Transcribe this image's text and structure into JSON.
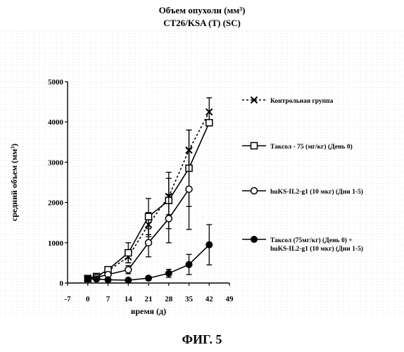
{
  "header": {
    "title_line1": "Объем опухоли (мм³)",
    "title_line2": "CT26/KSA (T) (SC)"
  },
  "figure_label": "ФИГ. 5",
  "chart_data": {
    "type": "line",
    "title": "Объем опухоли (мм³)",
    "subtitle": "CT26/KSA (T) (SC)",
    "xlabel": "время (д)",
    "ylabel": "средний объем (мм³)",
    "xlim": [
      -7,
      49
    ],
    "ylim": [
      0,
      5000
    ],
    "xticks": [
      -7,
      0,
      7,
      14,
      21,
      28,
      35,
      42,
      49
    ],
    "yticks": [
      0,
      1000,
      2000,
      3000,
      4000,
      5000
    ],
    "grid": true,
    "legend_position": "right",
    "series": [
      {
        "name": "Контрольная группа",
        "marker": "x",
        "line": "dotted",
        "x": [
          0,
          3,
          7,
          14,
          21,
          28,
          35,
          42
        ],
        "y": [
          120,
          170,
          300,
          650,
          1450,
          2150,
          3300,
          4250
        ],
        "err": [
          0,
          30,
          60,
          150,
          300,
          450,
          500,
          350
        ]
      },
      {
        "name": "Таксол - 75 (мг/кг) (День 0)",
        "marker": "square",
        "line": "solid",
        "x": [
          0,
          3,
          7,
          14,
          21,
          28,
          35,
          42
        ],
        "y": [
          110,
          160,
          330,
          750,
          1650,
          2050,
          2850,
          3980
        ],
        "err": [
          0,
          30,
          60,
          250,
          450,
          700,
          950,
          0
        ]
      },
      {
        "name": "huKS-IL2-g1 (10 мкг) (Дни 1-5)",
        "marker": "circle-open",
        "line": "solid",
        "x": [
          0,
          3,
          7,
          14,
          21,
          28,
          35
        ],
        "y": [
          110,
          140,
          210,
          330,
          1000,
          1600,
          2330
        ],
        "err": [
          0,
          20,
          40,
          100,
          350,
          600,
          1000
        ]
      },
      {
        "name": "Таксол (75мг/кг) (День 0) + huKS-IL2-g1 (10 мкг) (Дни 1-5)",
        "marker": "circle-filled",
        "line": "solid",
        "x": [
          0,
          3,
          7,
          14,
          21,
          28,
          35,
          42
        ],
        "y": [
          100,
          100,
          80,
          70,
          120,
          240,
          460,
          950
        ],
        "err": [
          0,
          20,
          30,
          20,
          50,
          100,
          250,
          500
        ]
      }
    ]
  }
}
